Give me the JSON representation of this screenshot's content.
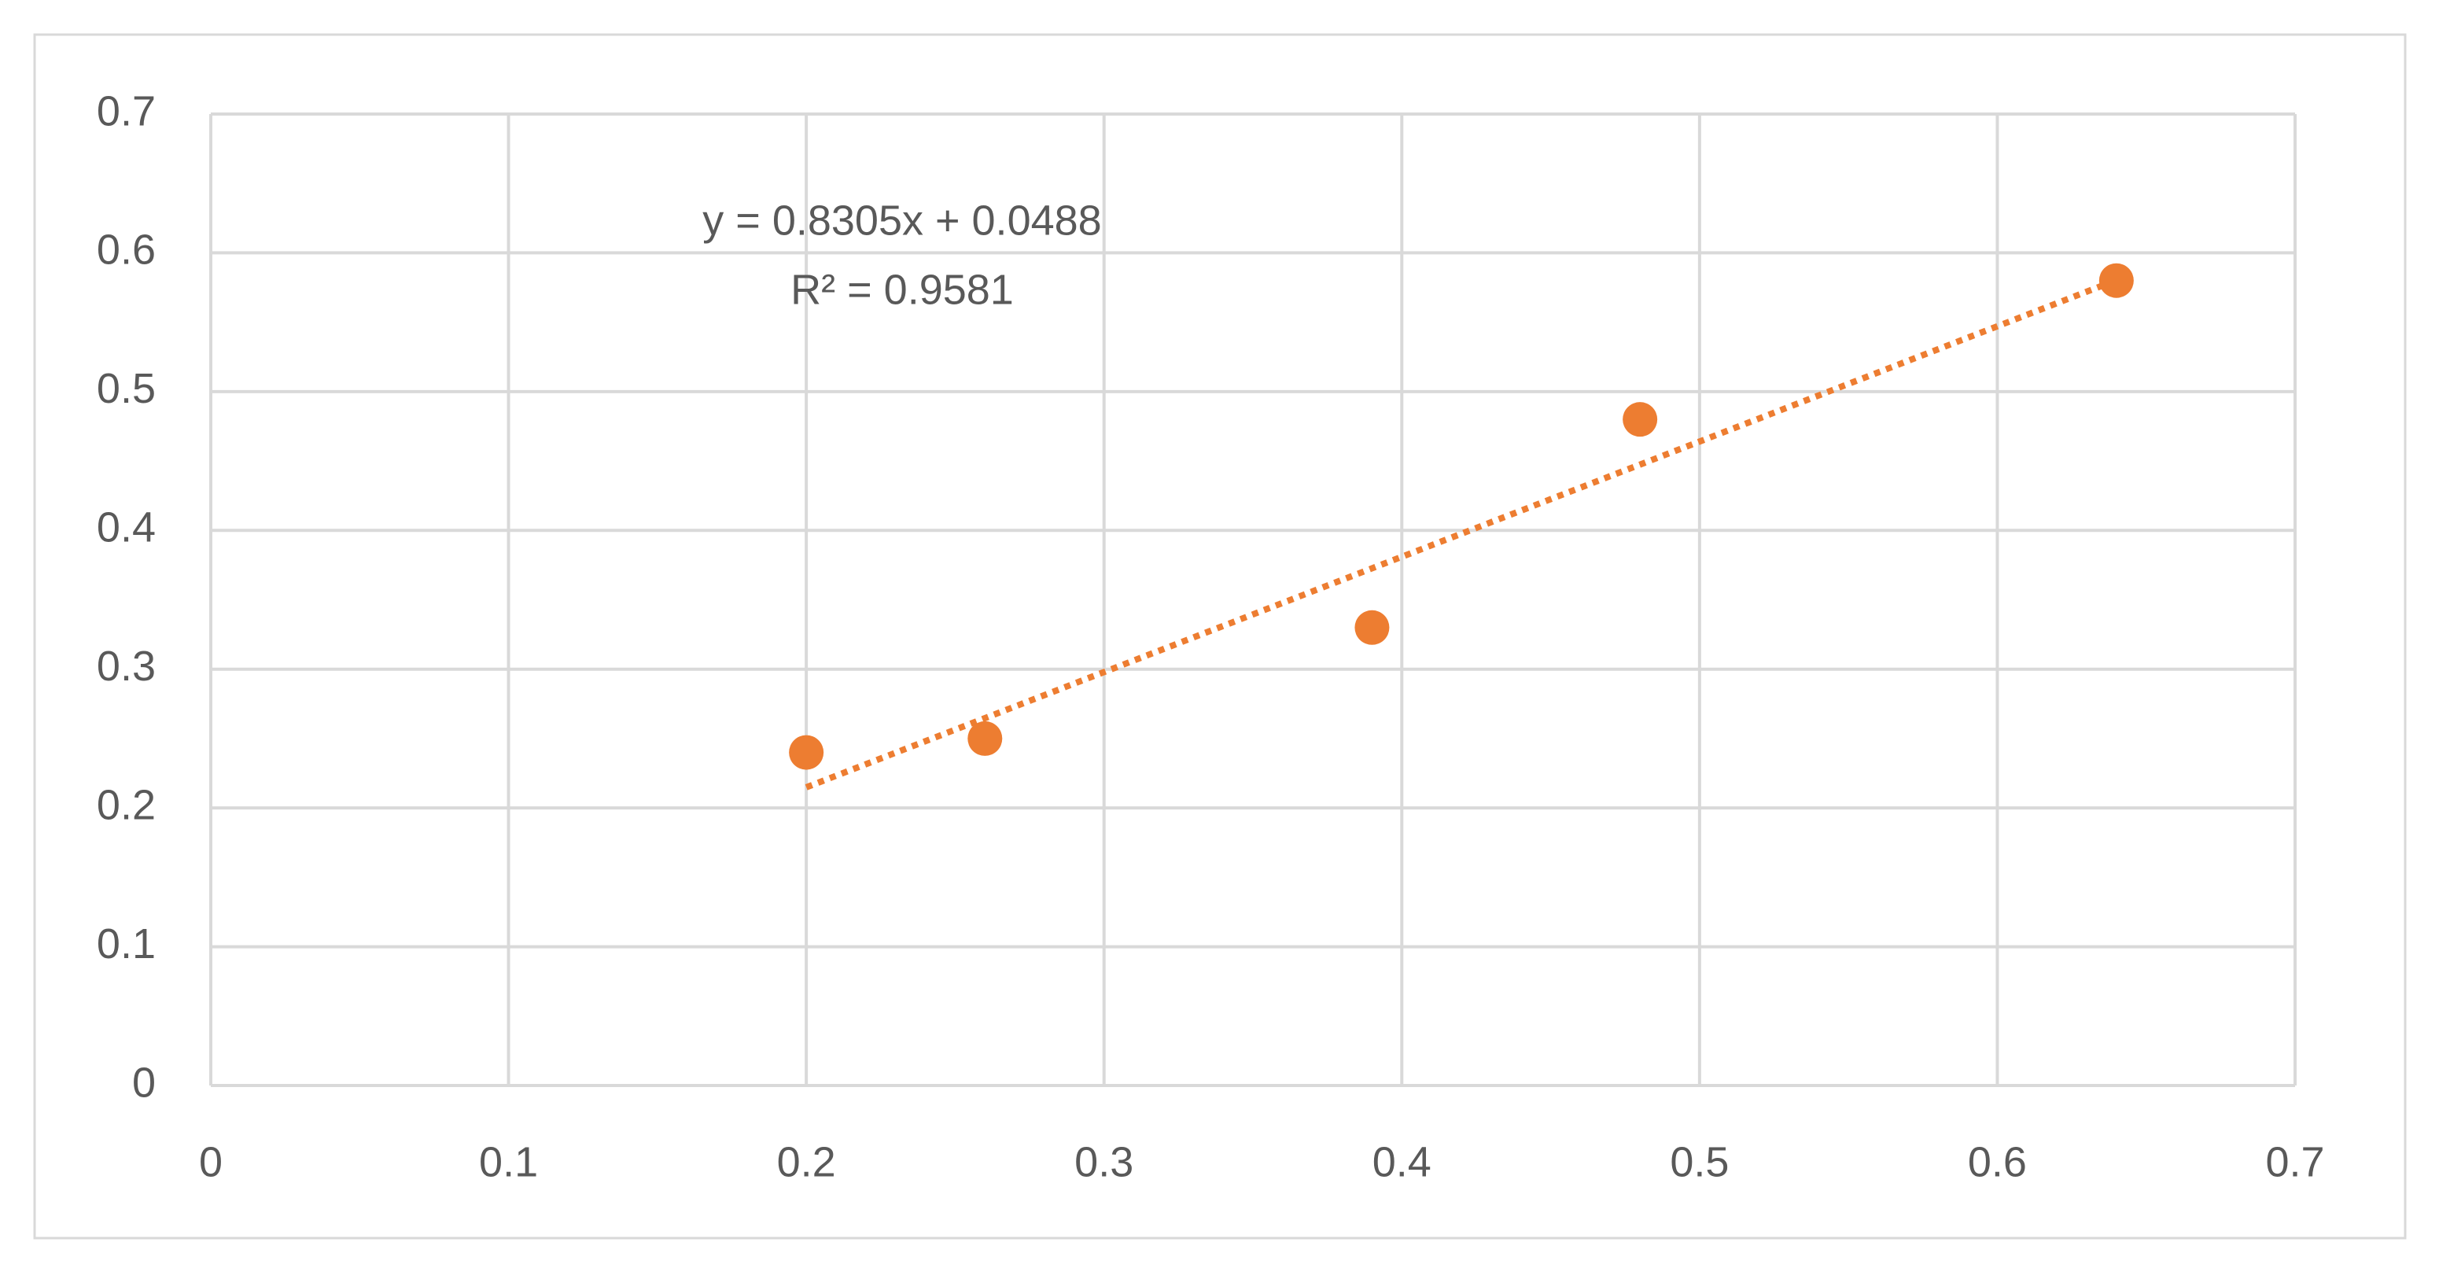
{
  "chart_data": {
    "type": "scatter",
    "annotations": [
      "y = 0.8305x + 0.0488",
      "R² = 0.9581"
    ],
    "series": [
      {
        "color": "#ed7d31",
        "x": [
          0.2,
          0.26,
          0.39,
          0.48,
          0.64
        ],
        "values": [
          0.24,
          0.25,
          0.33,
          0.48,
          0.58
        ]
      }
    ],
    "trendline": {
      "type": "linear",
      "color": "#ed7d31",
      "style": "dotted"
    },
    "xlim": [
      0,
      0.7
    ],
    "xticks": [
      0,
      0.1,
      0.2,
      0.3,
      0.4,
      0.5,
      0.6,
      0.7
    ],
    "ylim": [
      0,
      0.7
    ],
    "yticks": [
      0,
      0.1,
      0.2,
      0.3,
      0.4,
      0.5,
      0.6,
      0.7
    ],
    "grid": true
  }
}
